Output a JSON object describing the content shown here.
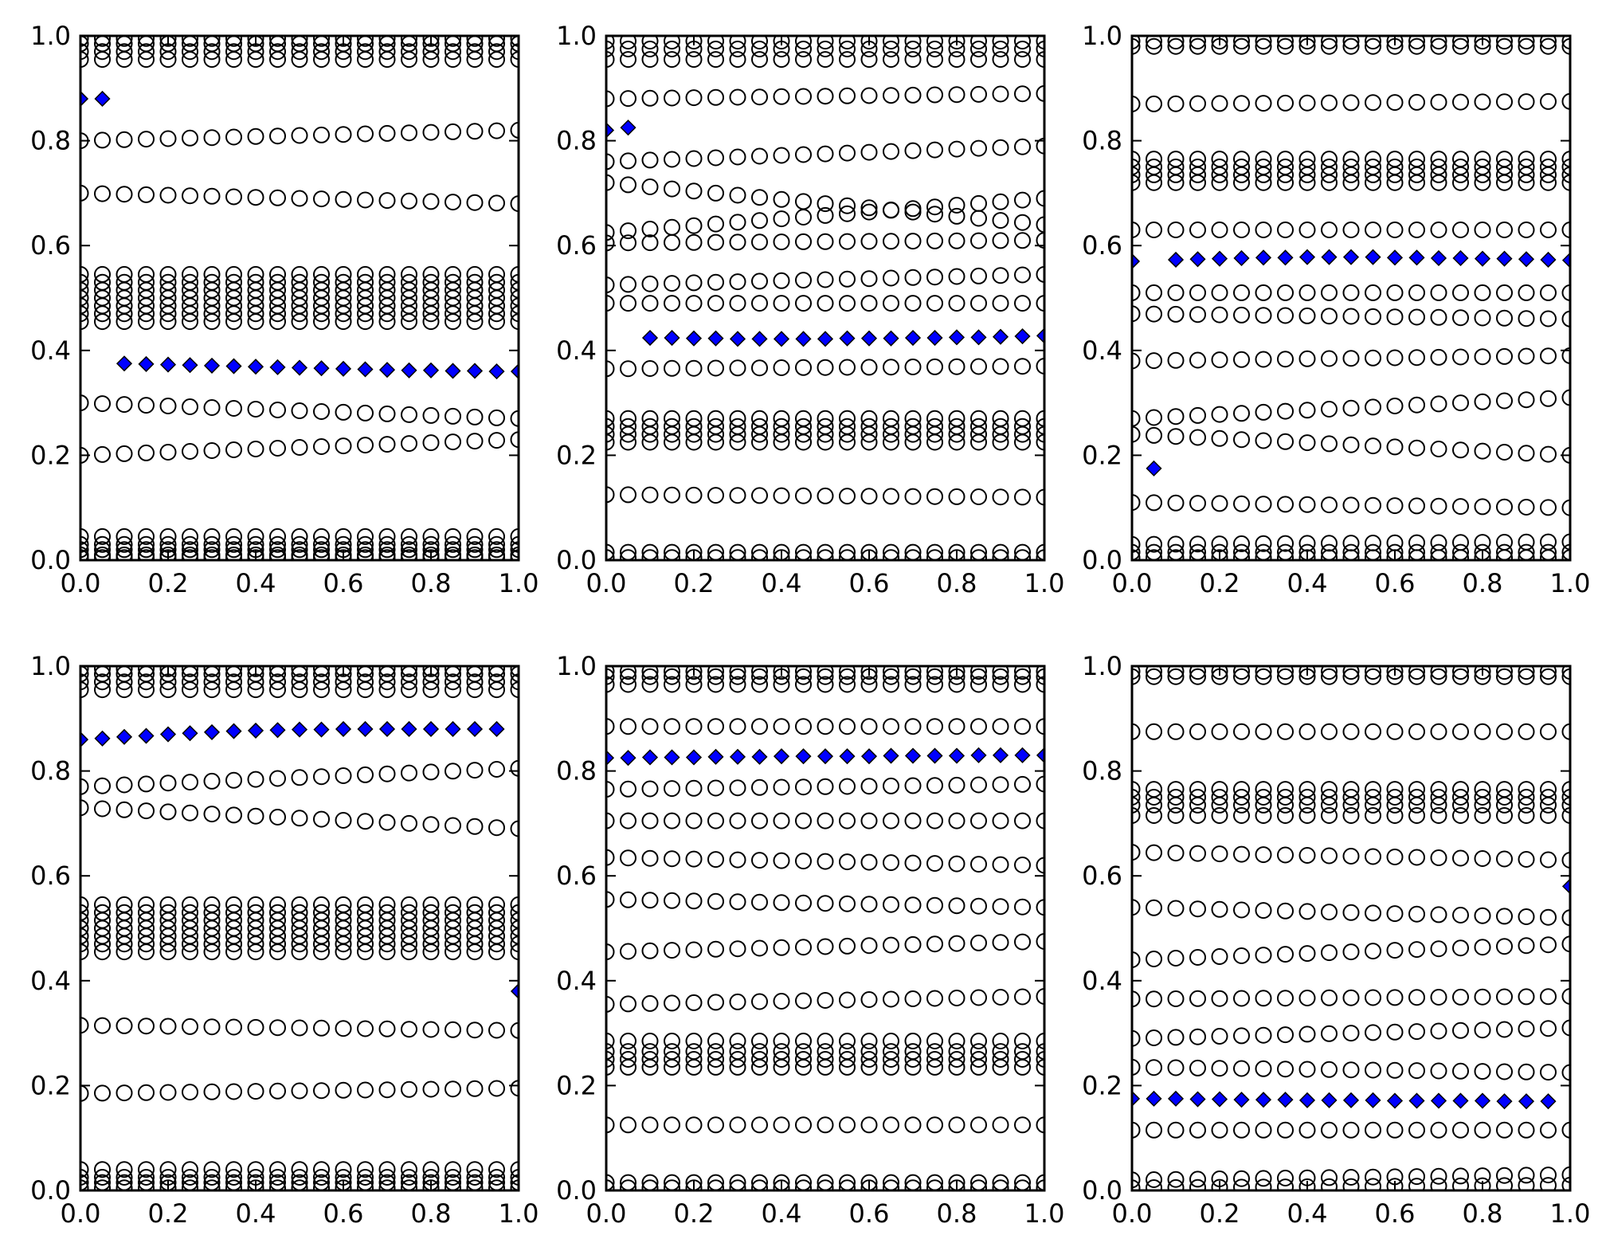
{
  "chart_data": [
    {
      "type": "scatter",
      "title": "",
      "xlabel": "",
      "ylabel": "",
      "xlim": [
        0,
        1
      ],
      "ylim": [
        0,
        1
      ],
      "grid": false,
      "legend": "none",
      "x_ticks": [
        "0.0",
        "0.2",
        "0.4",
        "0.6",
        "0.8",
        "1.0"
      ],
      "y_ticks": [
        "0.0",
        "0.2",
        "0.4",
        "0.6",
        "0.8",
        "1.0"
      ],
      "x": [
        0.0,
        0.05,
        0.1,
        0.15,
        0.2,
        0.25,
        0.3,
        0.35,
        0.4,
        0.45,
        0.5,
        0.55,
        0.6,
        0.65,
        0.7,
        0.75,
        0.8,
        0.85,
        0.9,
        0.95,
        1.0
      ],
      "series": [
        {
          "marker": "open-circle",
          "color": "#000000",
          "level_start": [
            0.005,
            0.01,
            0.02,
            0.03,
            0.045,
            0.2,
            0.3,
            0.455,
            0.47,
            0.485,
            0.5,
            0.515,
            0.53,
            0.545,
            0.7,
            0.8,
            0.955,
            0.97,
            0.985,
            0.995
          ],
          "level_end": [
            0.005,
            0.01,
            0.02,
            0.03,
            0.045,
            0.23,
            0.27,
            0.455,
            0.47,
            0.485,
            0.5,
            0.515,
            0.53,
            0.545,
            0.68,
            0.82,
            0.955,
            0.97,
            0.985,
            0.995
          ]
        },
        {
          "marker": "filled-diamond",
          "color": "#0000ff",
          "y": [
            0.88,
            0.88,
            0.375,
            0.374,
            0.373,
            0.372,
            0.371,
            0.37,
            0.369,
            0.368,
            0.367,
            0.366,
            0.365,
            0.364,
            0.363,
            0.362,
            0.362,
            0.361,
            0.361,
            0.36,
            0.36
          ]
        }
      ]
    },
    {
      "type": "scatter",
      "title": "",
      "xlabel": "",
      "ylabel": "",
      "xlim": [
        0,
        1
      ],
      "ylim": [
        0,
        1
      ],
      "grid": false,
      "legend": "none",
      "x_ticks": [
        "0.0",
        "0.2",
        "0.4",
        "0.6",
        "0.8",
        "1.0"
      ],
      "y_ticks": [
        "0.0",
        "0.2",
        "0.4",
        "0.6",
        "0.8",
        "1.0"
      ],
      "x": [
        0.0,
        0.05,
        0.1,
        0.15,
        0.2,
        0.25,
        0.3,
        0.35,
        0.4,
        0.45,
        0.5,
        0.55,
        0.6,
        0.65,
        0.7,
        0.75,
        0.8,
        0.85,
        0.9,
        0.95,
        1.0
      ],
      "series": [
        {
          "marker": "open-circle",
          "color": "#000000",
          "level_start": [
            0.005,
            0.015,
            0.125,
            0.225,
            0.24,
            0.255,
            0.27,
            0.365,
            0.49,
            0.525,
            0.605,
            0.625,
            0.72,
            0.76,
            0.88,
            0.955,
            0.975,
            0.99
          ],
          "level_end": [
            0.005,
            0.015,
            0.12,
            0.225,
            0.24,
            0.255,
            0.27,
            0.37,
            0.49,
            0.545,
            0.61,
            0.69,
            0.64,
            0.79,
            0.89,
            0.955,
            0.975,
            0.99
          ]
        },
        {
          "marker": "filled-diamond",
          "color": "#0000ff",
          "y": [
            0.82,
            0.825,
            0.424,
            0.424,
            0.423,
            0.423,
            0.422,
            0.422,
            0.422,
            0.422,
            0.422,
            0.423,
            0.423,
            0.423,
            0.424,
            0.424,
            0.425,
            0.425,
            0.426,
            0.427,
            0.428
          ]
        }
      ]
    },
    {
      "type": "scatter",
      "title": "",
      "xlabel": "",
      "ylabel": "",
      "xlim": [
        0,
        1
      ],
      "ylim": [
        0,
        1
      ],
      "grid": false,
      "legend": "none",
      "x_ticks": [
        "0.0",
        "0.2",
        "0.4",
        "0.6",
        "0.8",
        "1.0"
      ],
      "y_ticks": [
        "0.0",
        "0.2",
        "0.4",
        "0.6",
        "0.8",
        "1.0"
      ],
      "x": [
        0.0,
        0.05,
        0.1,
        0.15,
        0.2,
        0.25,
        0.3,
        0.35,
        0.4,
        0.45,
        0.5,
        0.55,
        0.6,
        0.65,
        0.7,
        0.75,
        0.8,
        0.85,
        0.9,
        0.95,
        1.0
      ],
      "series": [
        {
          "marker": "open-circle",
          "color": "#000000",
          "level_start": [
            0.005,
            0.015,
            0.03,
            0.11,
            0.24,
            0.27,
            0.38,
            0.47,
            0.51,
            0.63,
            0.72,
            0.735,
            0.75,
            0.765,
            0.87,
            0.98,
            0.99
          ],
          "level_end": [
            0.005,
            0.015,
            0.035,
            0.1,
            0.2,
            0.31,
            0.39,
            0.46,
            0.51,
            0.63,
            0.72,
            0.735,
            0.75,
            0.765,
            0.875,
            0.98,
            0.99
          ]
        },
        {
          "marker": "filled-diamond",
          "color": "#0000ff",
          "y": [
            0.57,
            0.175,
            0.573,
            0.574,
            0.575,
            0.576,
            0.577,
            0.577,
            0.578,
            0.578,
            0.578,
            0.578,
            0.577,
            0.577,
            0.576,
            0.576,
            0.575,
            0.575,
            0.574,
            0.573,
            0.572
          ]
        }
      ]
    },
    {
      "type": "scatter",
      "title": "",
      "xlabel": "",
      "ylabel": "",
      "xlim": [
        0,
        1
      ],
      "ylim": [
        0,
        1
      ],
      "grid": false,
      "legend": "none",
      "x_ticks": [
        "0.0",
        "0.2",
        "0.4",
        "0.6",
        "0.8",
        "1.0"
      ],
      "y_ticks": [
        "0.0",
        "0.2",
        "0.4",
        "0.6",
        "0.8",
        "1.0"
      ],
      "x": [
        0.0,
        0.05,
        0.1,
        0.15,
        0.2,
        0.25,
        0.3,
        0.35,
        0.4,
        0.45,
        0.5,
        0.55,
        0.6,
        0.65,
        0.7,
        0.75,
        0.8,
        0.85,
        0.9,
        0.95,
        1.0
      ],
      "series": [
        {
          "marker": "open-circle",
          "color": "#000000",
          "level_start": [
            0.005,
            0.015,
            0.025,
            0.04,
            0.185,
            0.315,
            0.455,
            0.47,
            0.485,
            0.5,
            0.515,
            0.53,
            0.545,
            0.73,
            0.77,
            0.955,
            0.97,
            0.985,
            0.995
          ],
          "level_end": [
            0.005,
            0.015,
            0.025,
            0.04,
            0.195,
            0.305,
            0.455,
            0.47,
            0.485,
            0.5,
            0.515,
            0.53,
            0.545,
            0.69,
            0.805,
            0.955,
            0.97,
            0.985,
            0.995
          ]
        },
        {
          "marker": "filled-diamond",
          "color": "#0000ff",
          "y": [
            0.86,
            0.862,
            0.865,
            0.867,
            0.87,
            0.872,
            0.874,
            0.876,
            0.877,
            0.878,
            0.879,
            0.879,
            0.88,
            0.88,
            0.88,
            0.88,
            0.88,
            0.88,
            0.88,
            0.88,
            0.38
          ]
        }
      ]
    },
    {
      "type": "scatter",
      "title": "",
      "xlabel": "",
      "ylabel": "",
      "xlim": [
        0,
        1
      ],
      "ylim": [
        0,
        1
      ],
      "grid": false,
      "legend": "none",
      "x_ticks": [
        "0.0",
        "0.2",
        "0.4",
        "0.6",
        "0.8",
        "1.0"
      ],
      "y_ticks": [
        "0.0",
        "0.2",
        "0.4",
        "0.6",
        "0.8",
        "1.0"
      ],
      "x": [
        0.0,
        0.05,
        0.1,
        0.15,
        0.2,
        0.25,
        0.3,
        0.35,
        0.4,
        0.45,
        0.5,
        0.55,
        0.6,
        0.65,
        0.7,
        0.75,
        0.8,
        0.85,
        0.9,
        0.95,
        1.0
      ],
      "series": [
        {
          "marker": "open-circle",
          "color": "#000000",
          "level_start": [
            0.005,
            0.015,
            0.125,
            0.235,
            0.25,
            0.265,
            0.285,
            0.355,
            0.455,
            0.555,
            0.635,
            0.705,
            0.765,
            0.885,
            0.965,
            0.98,
            0.99
          ],
          "level_end": [
            0.005,
            0.015,
            0.125,
            0.235,
            0.25,
            0.265,
            0.285,
            0.37,
            0.475,
            0.54,
            0.62,
            0.705,
            0.775,
            0.885,
            0.965,
            0.98,
            0.99
          ]
        },
        {
          "marker": "filled-diamond",
          "color": "#0000ff",
          "y": [
            0.825,
            0.825,
            0.826,
            0.826,
            0.826,
            0.827,
            0.827,
            0.827,
            0.828,
            0.828,
            0.828,
            0.828,
            0.828,
            0.829,
            0.829,
            0.829,
            0.829,
            0.83,
            0.83,
            0.83,
            0.83
          ]
        }
      ]
    },
    {
      "type": "scatter",
      "title": "",
      "xlabel": "",
      "ylabel": "",
      "xlim": [
        0,
        1
      ],
      "ylim": [
        0,
        1
      ],
      "grid": false,
      "legend": "none",
      "x_ticks": [
        "0.0",
        "0.2",
        "0.4",
        "0.6",
        "0.8",
        "1.0"
      ],
      "y_ticks": [
        "0.0",
        "0.2",
        "0.4",
        "0.6",
        "0.8",
        "1.0"
      ],
      "x": [
        0.0,
        0.05,
        0.1,
        0.15,
        0.2,
        0.25,
        0.3,
        0.35,
        0.4,
        0.45,
        0.5,
        0.55,
        0.6,
        0.65,
        0.7,
        0.75,
        0.8,
        0.85,
        0.9,
        0.95,
        1.0
      ],
      "series": [
        {
          "marker": "open-circle",
          "color": "#000000",
          "level_start": [
            0.005,
            0.02,
            0.115,
            0.235,
            0.29,
            0.365,
            0.44,
            0.54,
            0.645,
            0.715,
            0.735,
            0.75,
            0.765,
            0.875,
            0.98,
            0.99
          ],
          "level_end": [
            0.01,
            0.03,
            0.115,
            0.225,
            0.31,
            0.37,
            0.47,
            0.52,
            0.63,
            0.715,
            0.735,
            0.75,
            0.765,
            0.875,
            0.98,
            0.99
          ]
        },
        {
          "marker": "filled-diamond",
          "color": "#0000ff",
          "y": [
            0.175,
            0.175,
            0.175,
            0.174,
            0.174,
            0.173,
            0.173,
            0.173,
            0.172,
            0.172,
            0.172,
            0.172,
            0.171,
            0.171,
            0.171,
            0.171,
            0.171,
            0.17,
            0.17,
            0.17,
            0.58
          ]
        }
      ]
    }
  ]
}
